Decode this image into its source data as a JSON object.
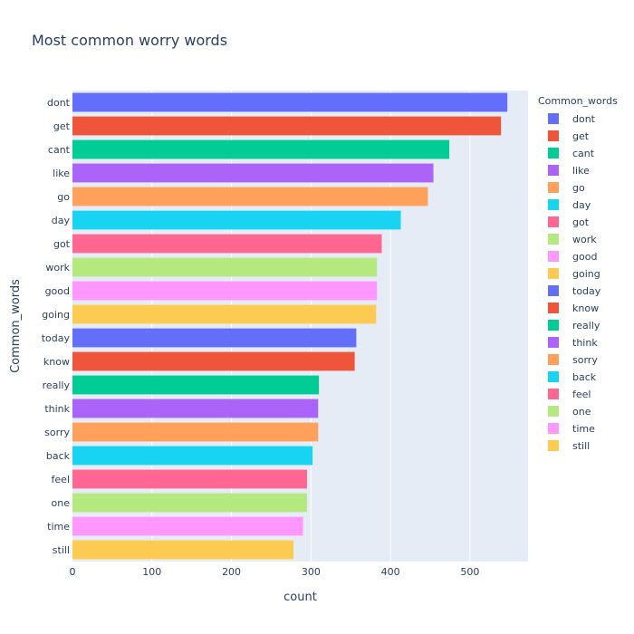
{
  "chart_data": {
    "type": "bar",
    "orientation": "horizontal",
    "title": "Most common worry words",
    "xlabel": "count",
    "ylabel": "Common_words",
    "legend_title": "Common_words",
    "legend_placement": "right",
    "xlim": [
      0,
      573
    ],
    "xticks": [
      0,
      100,
      200,
      300,
      400,
      500
    ],
    "grid": true,
    "plot_background": "#e5ecf6",
    "grid_color": "#ffffff",
    "categories": [
      "dont",
      "get",
      "cant",
      "like",
      "go",
      "day",
      "got",
      "work",
      "good",
      "going",
      "today",
      "know",
      "really",
      "think",
      "sorry",
      "back",
      "feel",
      "one",
      "time",
      "still"
    ],
    "values": [
      547,
      539,
      474,
      454,
      447,
      413,
      389,
      383,
      383,
      382,
      357,
      355,
      310,
      309,
      309,
      302,
      295,
      295,
      290,
      278
    ],
    "colors": [
      "#636efa",
      "#ef553b",
      "#00cc96",
      "#ab63fa",
      "#ffa15a",
      "#19d3f3",
      "#ff6692",
      "#b6e880",
      "#ff97ff",
      "#fecb52",
      "#636efa",
      "#ef553b",
      "#00cc96",
      "#ab63fa",
      "#ffa15a",
      "#19d3f3",
      "#ff6692",
      "#b6e880",
      "#ff97ff",
      "#fecb52"
    ]
  }
}
